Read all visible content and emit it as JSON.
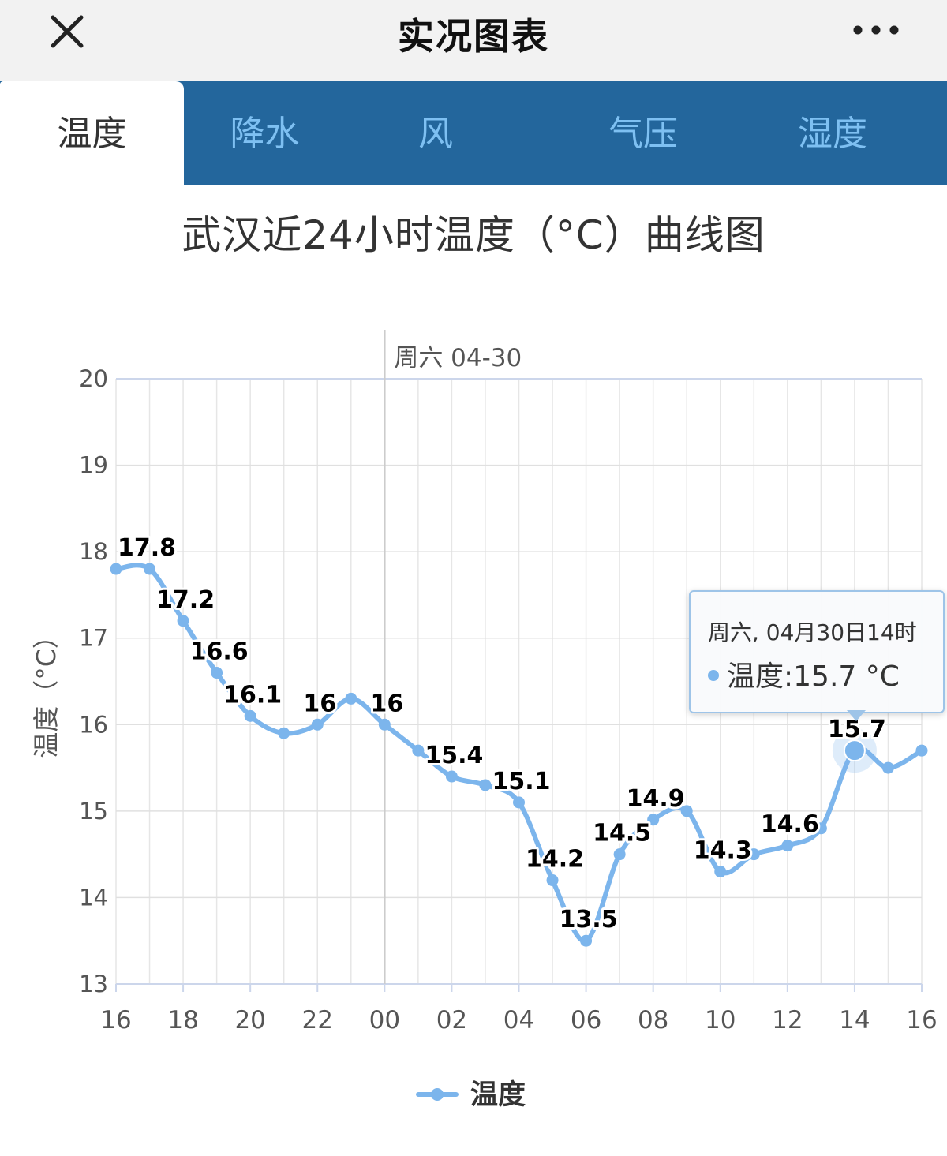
{
  "app": {
    "title": "实况图表"
  },
  "tabs": [
    {
      "label": "温度",
      "active": true
    },
    {
      "label": "降水",
      "active": false
    },
    {
      "label": "风",
      "active": false
    },
    {
      "label": "气压",
      "active": false
    },
    {
      "label": "湿度",
      "active": false
    }
  ],
  "icons": {
    "close": "close-icon",
    "more": "more-dots-icon"
  },
  "colors": {
    "series": "#7cb5ec",
    "tab_bar": "#23669c",
    "tab_text": "#7ec0f2"
  },
  "tooltip": {
    "header": "周六, 04月30日14时",
    "series_label": "温度",
    "value_text": "15.7 °C"
  },
  "chart_data": {
    "type": "line",
    "title": "武汉近24小时温度（°C）曲线图",
    "ylabel": "温度（°C）",
    "xlabel": "",
    "date_marker": "周六 04-30",
    "ylim": [
      13,
      20
    ],
    "yticks": [
      13,
      14,
      15,
      16,
      17,
      18,
      19,
      20
    ],
    "xtick_labels": [
      "16",
      "18",
      "20",
      "22",
      "00",
      "02",
      "04",
      "06",
      "08",
      "10",
      "12",
      "14",
      "16"
    ],
    "x": [
      "16",
      "17",
      "18",
      "19",
      "20",
      "21",
      "22",
      "23",
      "00",
      "01",
      "02",
      "03",
      "04",
      "05",
      "06",
      "07",
      "08",
      "09",
      "10",
      "11",
      "12",
      "13",
      "14",
      "15",
      "16"
    ],
    "series": [
      {
        "name": "温度",
        "values": [
          17.8,
          17.8,
          17.2,
          16.6,
          16.1,
          15.9,
          16.0,
          16.3,
          16.0,
          15.7,
          15.4,
          15.3,
          15.1,
          14.2,
          13.5,
          14.5,
          14.9,
          15.0,
          14.3,
          14.5,
          14.6,
          14.8,
          15.7,
          15.5,
          15.7
        ]
      }
    ],
    "data_labels": [
      {
        "index": 0,
        "text": "17.8"
      },
      {
        "index": 2,
        "text": "17.2"
      },
      {
        "index": 3,
        "text": "16.6"
      },
      {
        "index": 4,
        "text": "16.1"
      },
      {
        "index": 6,
        "text": "16"
      },
      {
        "index": 8,
        "text": "16"
      },
      {
        "index": 10,
        "text": "15.4"
      },
      {
        "index": 12,
        "text": "15.1"
      },
      {
        "index": 13,
        "text": "14.2"
      },
      {
        "index": 14,
        "text": "13.5"
      },
      {
        "index": 15,
        "text": "14.5"
      },
      {
        "index": 16,
        "text": "14.9"
      },
      {
        "index": 18,
        "text": "14.3"
      },
      {
        "index": 20,
        "text": "14.6"
      },
      {
        "index": 22,
        "text": "15.7"
      }
    ],
    "highlight_index": 22,
    "grid": true,
    "legend": {
      "position": "bottom-center",
      "entries": [
        "温度"
      ]
    }
  }
}
